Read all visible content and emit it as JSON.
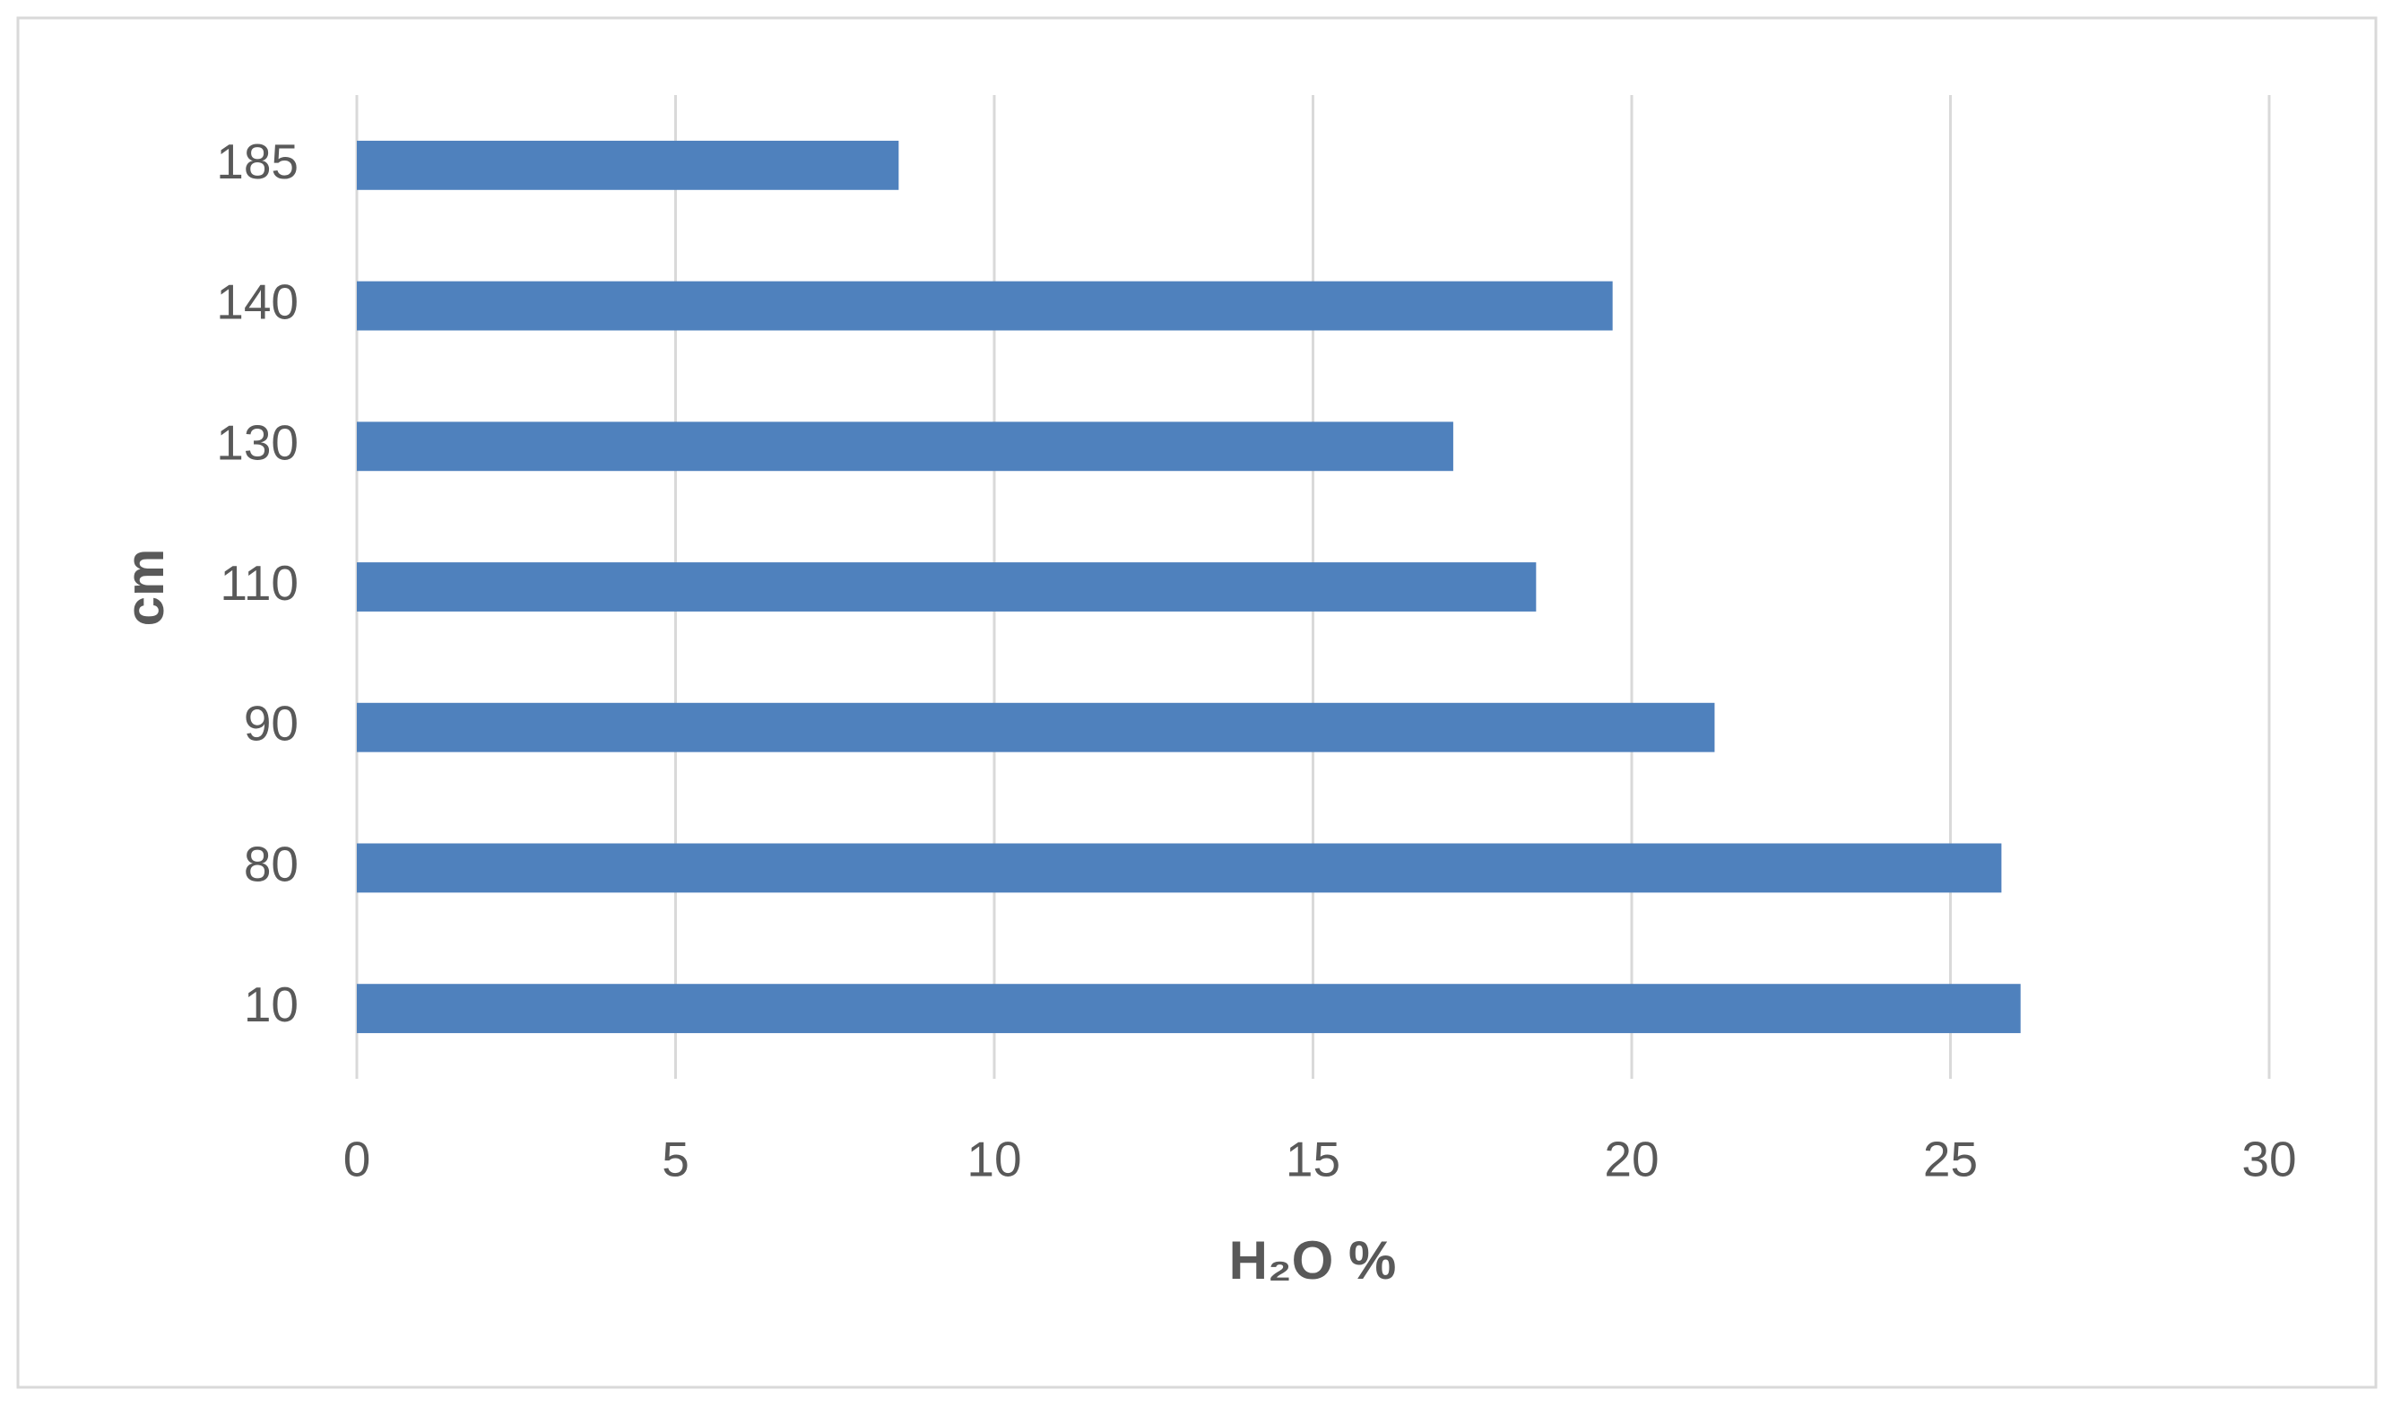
{
  "chart_data": {
    "type": "barh",
    "categories": [
      "10",
      "80",
      "90",
      "110",
      "130",
      "140",
      "185"
    ],
    "values": [
      26.1,
      25.8,
      21.3,
      18.5,
      17.2,
      19.7,
      8.5
    ],
    "color": "#4f81bd",
    "xlabel": "H₂O %",
    "ylabel": "cm",
    "xlim": [
      0,
      30
    ],
    "xticks": [
      0,
      5,
      10,
      15,
      20,
      25,
      30
    ],
    "grid": true
  }
}
